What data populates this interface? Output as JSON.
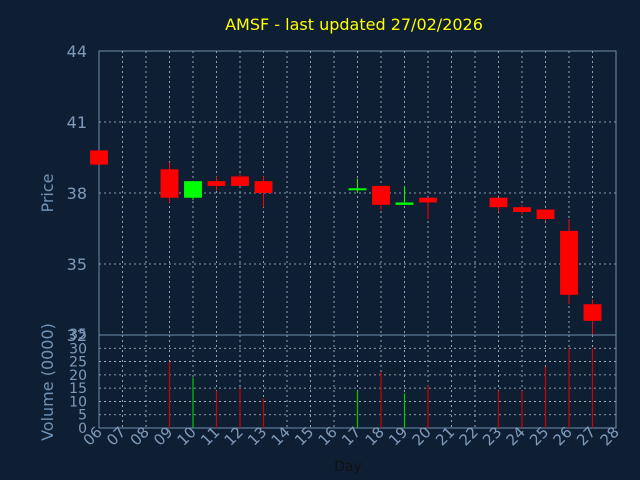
{
  "colors": {
    "background": "#0f1f33",
    "title": "#ffff00",
    "axis_text": "#7f9bbb",
    "up": "#00ff00",
    "down": "#ff0000",
    "volume_up": "#00c800",
    "volume_down": "#d00000",
    "grid": "#c9d4df"
  },
  "chart_data": [
    {
      "type": "candlestick",
      "title": "AMSF - last updated 27/02/2026",
      "ylabel": "Price",
      "ylim": [
        32,
        44
      ],
      "yticks": [
        "44",
        "41",
        "38",
        "35",
        "32"
      ],
      "xlim": [
        6,
        28
      ],
      "grid": true,
      "series": [
        {
          "x": 6,
          "open": 39.8,
          "close": 39.2,
          "high": 39.8,
          "low": 39.2
        },
        {
          "x": 9,
          "open": 39.0,
          "close": 37.8,
          "high": 39.3,
          "low": 37.6
        },
        {
          "x": 10,
          "open": 37.8,
          "close": 38.5,
          "high": 38.5,
          "low": 37.7
        },
        {
          "x": 11,
          "open": 38.5,
          "close": 38.3,
          "high": 38.7,
          "low": 38.1
        },
        {
          "x": 12,
          "open": 38.7,
          "close": 38.3,
          "high": 38.8,
          "low": 38.3
        },
        {
          "x": 13,
          "open": 38.5,
          "close": 38.0,
          "high": 38.7,
          "low": 37.4
        },
        {
          "x": 17,
          "open": 38.2,
          "close": 38.2,
          "high": 38.6,
          "low": 38.0
        },
        {
          "x": 18,
          "open": 38.3,
          "close": 37.5,
          "high": 38.3,
          "low": 37.3
        },
        {
          "x": 19,
          "open": 37.5,
          "close": 37.6,
          "high": 38.3,
          "low": 37.5
        },
        {
          "x": 20,
          "open": 37.8,
          "close": 37.6,
          "high": 37.8,
          "low": 36.9
        },
        {
          "x": 23,
          "open": 37.8,
          "close": 37.4,
          "high": 37.8,
          "low": 37.2
        },
        {
          "x": 24,
          "open": 37.4,
          "close": 37.2,
          "high": 37.5,
          "low": 37.1
        },
        {
          "x": 25,
          "open": 37.3,
          "close": 36.9,
          "high": 37.3,
          "low": 36.8
        },
        {
          "x": 26,
          "open": 36.4,
          "close": 33.7,
          "high": 36.9,
          "low": 33.3
        },
        {
          "x": 27,
          "open": 33.3,
          "close": 32.6,
          "high": 33.5,
          "low": 32.0
        }
      ]
    },
    {
      "type": "bar",
      "ylabel": "Volume (0000)",
      "ylim": [
        0,
        35
      ],
      "yticks": [
        "35",
        "30",
        "25",
        "20",
        "15",
        "10",
        "5",
        "0"
      ],
      "xlabel": "Day",
      "xticks": [
        "06",
        "07",
        "08",
        "09",
        "10",
        "11",
        "12",
        "13",
        "14",
        "15",
        "16",
        "17",
        "18",
        "19",
        "20",
        "21",
        "22",
        "23",
        "24",
        "25",
        "26",
        "27",
        "28"
      ],
      "xlim": [
        6,
        28
      ],
      "grid": true,
      "series": [
        {
          "x": 9,
          "value": 25,
          "up": false
        },
        {
          "x": 10,
          "value": 19,
          "up": true
        },
        {
          "x": 11,
          "value": 14,
          "up": false
        },
        {
          "x": 12,
          "value": 15,
          "up": false
        },
        {
          "x": 13,
          "value": 11,
          "up": false
        },
        {
          "x": 17,
          "value": 14,
          "up": true
        },
        {
          "x": 18,
          "value": 21,
          "up": false
        },
        {
          "x": 19,
          "value": 13,
          "up": true
        },
        {
          "x": 20,
          "value": 16,
          "up": false
        },
        {
          "x": 23,
          "value": 14,
          "up": false
        },
        {
          "x": 24,
          "value": 14,
          "up": false
        },
        {
          "x": 25,
          "value": 23,
          "up": false
        },
        {
          "x": 26,
          "value": 30,
          "up": false
        },
        {
          "x": 27,
          "value": 30,
          "up": false
        }
      ]
    }
  ]
}
